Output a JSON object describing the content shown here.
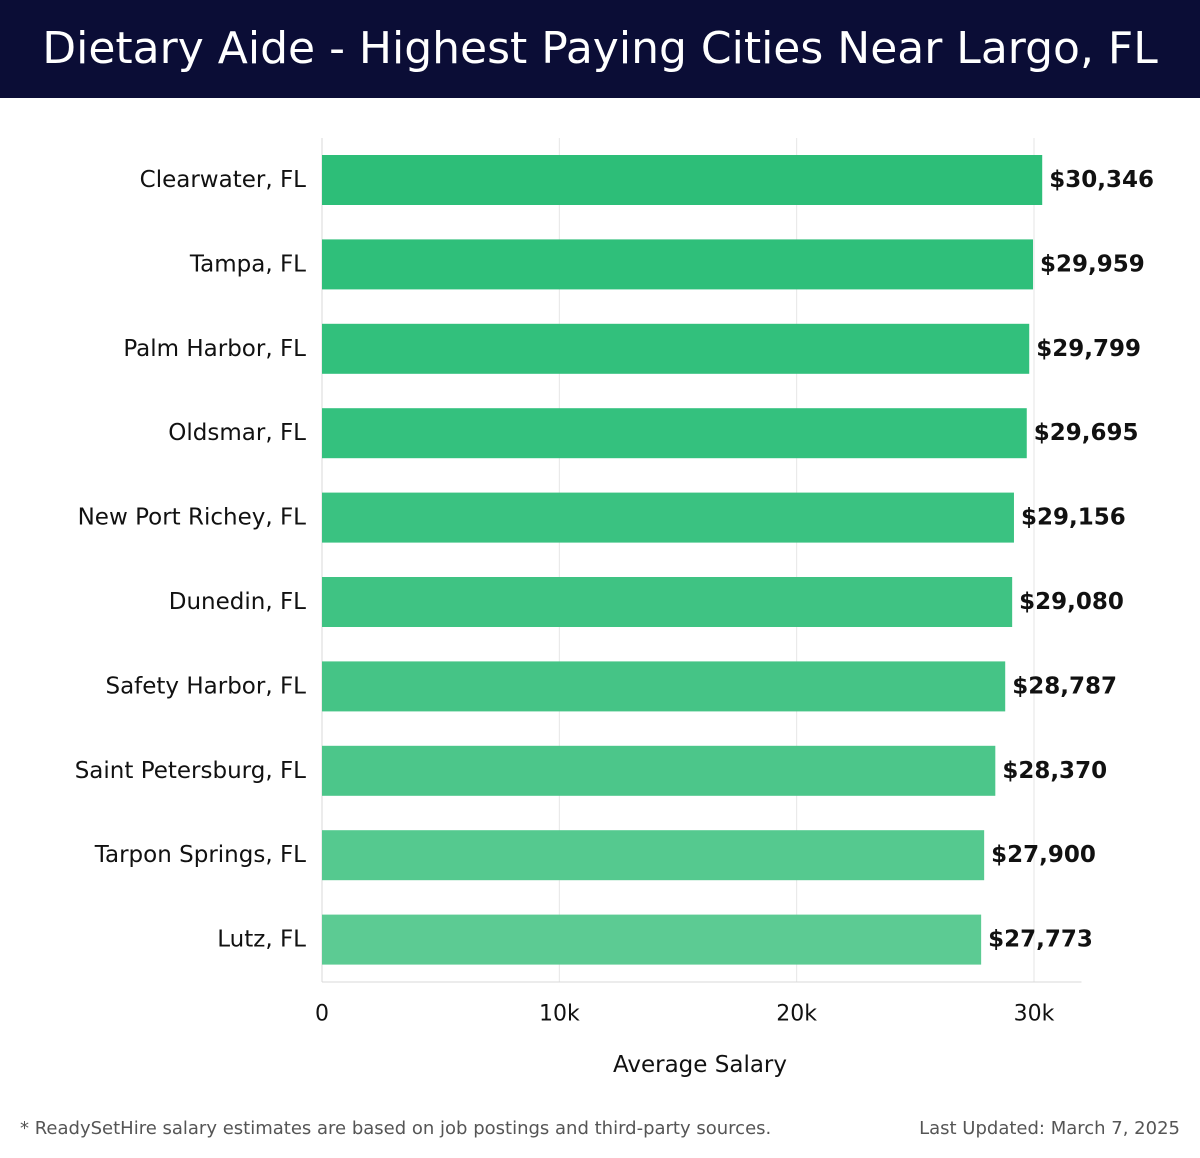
{
  "header": {
    "title": "Dietary Aide - Highest Paying Cities Near Largo, FL"
  },
  "chart_data": {
    "type": "bar",
    "orientation": "horizontal",
    "title": "Dietary Aide - Highest Paying Cities Near Largo, FL",
    "xlabel": "Average Salary",
    "ylabel": "",
    "xlim": [
      0,
      32000
    ],
    "grid": true,
    "x_ticks": [
      {
        "value": 0,
        "label": "0"
      },
      {
        "value": 10000,
        "label": "10k"
      },
      {
        "value": 20000,
        "label": "20k"
      },
      {
        "value": 30000,
        "label": "30k"
      }
    ],
    "categories": [
      "Clearwater, FL",
      "Tampa, FL",
      "Palm Harbor, FL",
      "Oldsmar, FL",
      "New Port Richey, FL",
      "Dunedin, FL",
      "Safety Harbor, FL",
      "Saint Petersburg, FL",
      "Tarpon Springs, FL",
      "Lutz, FL"
    ],
    "values": [
      30346,
      29959,
      29799,
      29695,
      29156,
      29080,
      28787,
      28370,
      27900,
      27773
    ],
    "value_labels": [
      "$30,346",
      "$29,959",
      "$29,799",
      "$29,695",
      "$29,156",
      "$29,080",
      "$28,787",
      "$28,370",
      "$27,900",
      "$27,773"
    ],
    "colors": [
      "#2dbe78",
      "#2fbf7a",
      "#32c07c",
      "#34c17e",
      "#3ac281",
      "#3fc383",
      "#45c486",
      "#4cc68a",
      "#55c98f",
      "#5ccb93"
    ]
  },
  "footer": {
    "note": "* ReadySetHire salary estimates are based on job postings and third-party sources.",
    "updated": "Last Updated: March 7, 2025"
  }
}
